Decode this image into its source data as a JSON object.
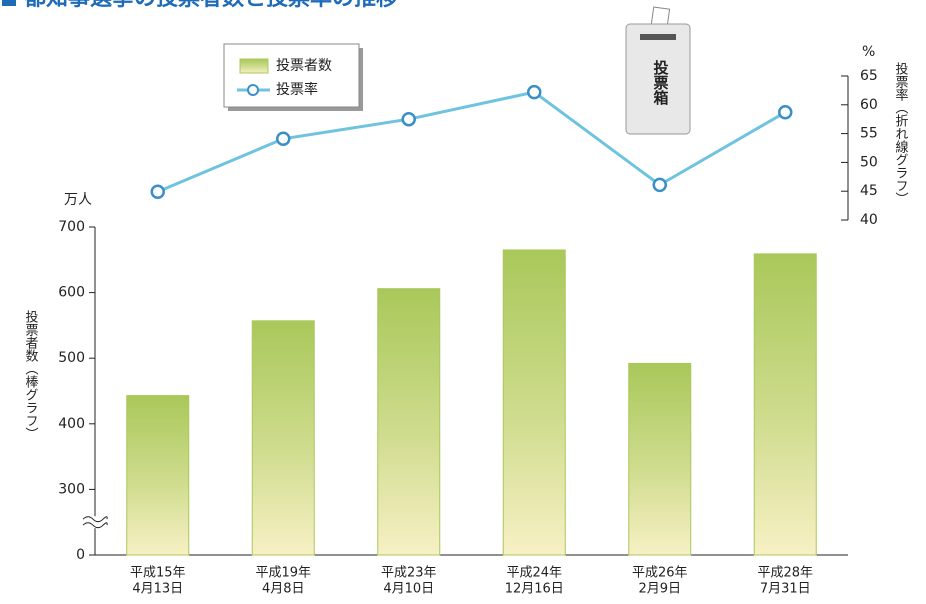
{
  "title": "都知事選挙の投票者数と投票率の推移",
  "ballot_box": "投票箱",
  "chart_data": {
    "type": "bar-line",
    "categories": [
      [
        "平成15年",
        "4月13日"
      ],
      [
        "平成19年",
        "4月8日"
      ],
      [
        "平成23年",
        "4月10日"
      ],
      [
        "平成24年",
        "12月16日"
      ],
      [
        "平成26年",
        "2月9日"
      ],
      [
        "平成28年",
        "7月31日"
      ]
    ],
    "y_unit": "万人",
    "y_label": "投票者数（棒グラフ）",
    "y2_unit": "%",
    "y2_label": "投票率（折れ線グラフ）",
    "ylim": [
      0,
      700
    ],
    "yticks": [
      0,
      300,
      400,
      500,
      600,
      700
    ],
    "axis_break": true,
    "y2lim": [
      40,
      65
    ],
    "y2ticks": [
      40,
      45,
      50,
      55,
      60,
      65
    ],
    "series": [
      {
        "name": "投票者数",
        "color": "#a9c85a",
        "values": [
          443,
          557,
          606,
          665,
          492,
          659
        ]
      },
      {
        "name": "投票率",
        "color": "#6ec3e0",
        "axis": "y2",
        "values": [
          44.9,
          54.1,
          57.5,
          62.2,
          46.1,
          58.7
        ]
      }
    ]
  }
}
